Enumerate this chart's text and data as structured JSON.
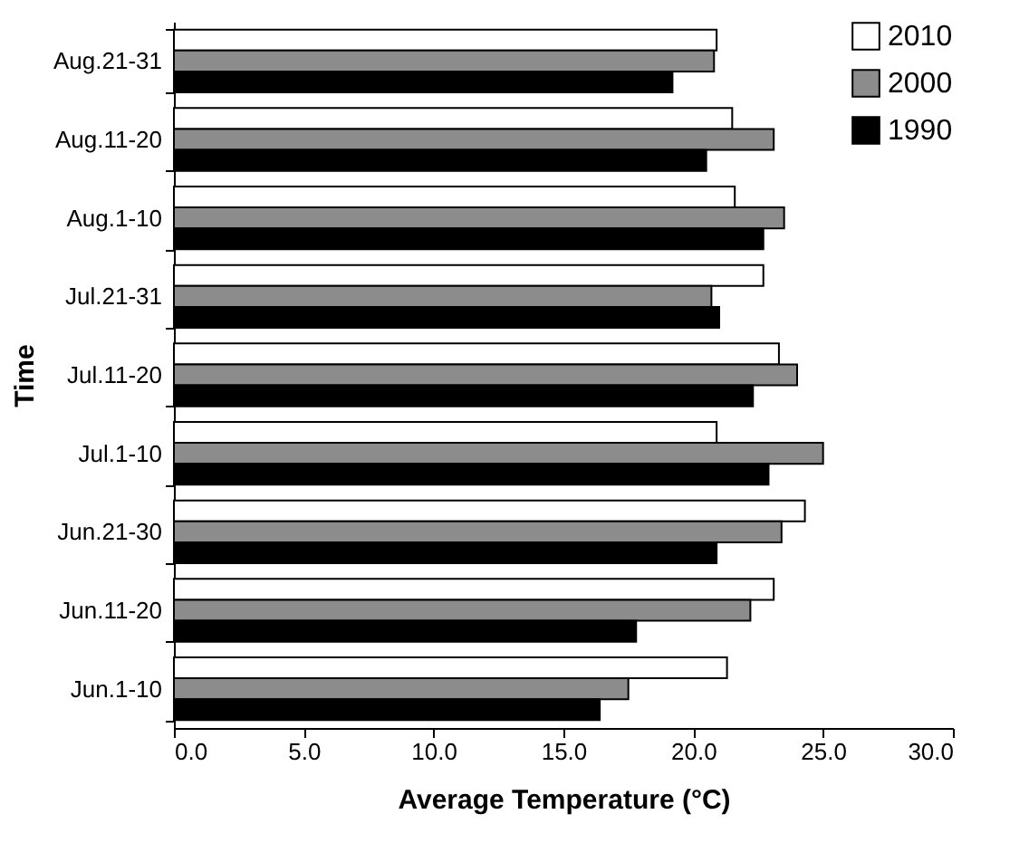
{
  "chart_data": {
    "type": "bar",
    "orientation": "horizontal",
    "xlabel": "Average Temperature (°C)",
    "ylabel": "Time",
    "categories": [
      "Aug.21-31",
      "Aug.11-20",
      "Aug.1-10",
      "Jul.21-31",
      "Jul.11-20",
      "Jul.1-10",
      "Jun.21-30",
      "Jun.11-20",
      "Jun.1-10"
    ],
    "series": [
      {
        "name": "2010",
        "color": "#ffffff",
        "values": [
          20.9,
          21.5,
          21.6,
          22.7,
          23.3,
          20.9,
          24.3,
          23.1,
          21.3
        ]
      },
      {
        "name": "2000",
        "color": "#8c8c8c",
        "values": [
          20.8,
          23.1,
          23.5,
          20.7,
          24.0,
          25.0,
          23.4,
          22.2,
          17.5
        ]
      },
      {
        "name": "1990",
        "color": "#000000",
        "values": [
          19.2,
          20.5,
          22.7,
          21.0,
          22.3,
          22.9,
          20.9,
          17.8,
          16.4
        ]
      }
    ],
    "xlim": [
      0,
      30
    ],
    "xticks": [
      {
        "value": 0,
        "label": "0.0"
      },
      {
        "value": 5,
        "label": "5.0"
      },
      {
        "value": 10,
        "label": "10.0"
      },
      {
        "value": 15,
        "label": "15.0"
      },
      {
        "value": 20,
        "label": "20.0"
      },
      {
        "value": 25,
        "label": "25.0"
      },
      {
        "value": 30,
        "label": "30.0"
      }
    ],
    "grid": false,
    "legend": "top right"
  }
}
